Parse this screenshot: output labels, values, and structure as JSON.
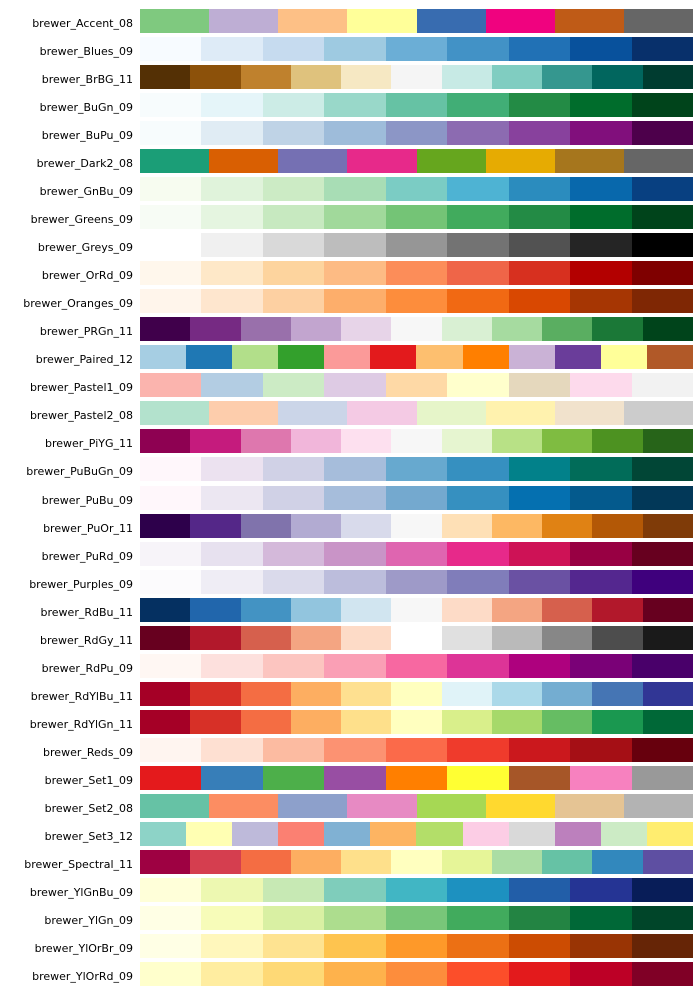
{
  "chart_data": {
    "type": "heatmap",
    "palettes": [
      {
        "name": "brewer_Accent_08",
        "colors": [
          "#7fc97f",
          "#beaed4",
          "#fdc086",
          "#ffff99",
          "#386cb0",
          "#f0027f",
          "#bf5b17",
          "#666666"
        ]
      },
      {
        "name": "brewer_Blues_09",
        "colors": [
          "#f7fbff",
          "#deebf7",
          "#c6dbef",
          "#9ecae1",
          "#6baed6",
          "#4292c6",
          "#2171b5",
          "#08519c",
          "#08306b"
        ]
      },
      {
        "name": "brewer_BrBG_11",
        "colors": [
          "#543005",
          "#8c510a",
          "#bf812d",
          "#dfc27d",
          "#f6e8c3",
          "#f5f5f5",
          "#c7eae5",
          "#80cdc1",
          "#35978f",
          "#01665e",
          "#003c30"
        ]
      },
      {
        "name": "brewer_BuGn_09",
        "colors": [
          "#f7fcfd",
          "#e5f5f9",
          "#ccece6",
          "#99d8c9",
          "#66c2a4",
          "#41ae76",
          "#238b45",
          "#006d2c",
          "#00441b"
        ]
      },
      {
        "name": "brewer_BuPu_09",
        "colors": [
          "#f7fcfd",
          "#e0ecf4",
          "#bfd3e6",
          "#9ebcda",
          "#8c96c6",
          "#8c6bb1",
          "#88419d",
          "#810f7c",
          "#4d004b"
        ]
      },
      {
        "name": "brewer_Dark2_08",
        "colors": [
          "#1b9e77",
          "#d95f02",
          "#7570b3",
          "#e7298a",
          "#66a61e",
          "#e6ab02",
          "#a6761d",
          "#666666"
        ]
      },
      {
        "name": "brewer_GnBu_09",
        "colors": [
          "#f7fcf0",
          "#e0f3db",
          "#ccebc5",
          "#a8ddb5",
          "#7bccc4",
          "#4eb3d3",
          "#2b8cbe",
          "#0868ac",
          "#084081"
        ]
      },
      {
        "name": "brewer_Greens_09",
        "colors": [
          "#f7fcf5",
          "#e5f5e0",
          "#c7e9c0",
          "#a1d99b",
          "#74c476",
          "#41ab5d",
          "#238b45",
          "#006d2c",
          "#00441b"
        ]
      },
      {
        "name": "brewer_Greys_09",
        "colors": [
          "#ffffff",
          "#f0f0f0",
          "#d9d9d9",
          "#bdbdbd",
          "#969696",
          "#737373",
          "#525252",
          "#252525",
          "#000000"
        ]
      },
      {
        "name": "brewer_OrRd_09",
        "colors": [
          "#fff7ec",
          "#fee8c8",
          "#fdd49e",
          "#fdbb84",
          "#fc8d59",
          "#ef6548",
          "#d7301f",
          "#b30000",
          "#7f0000"
        ]
      },
      {
        "name": "brewer_Oranges_09",
        "colors": [
          "#fff5eb",
          "#fee6ce",
          "#fdd0a2",
          "#fdae6b",
          "#fd8d3c",
          "#f16913",
          "#d94801",
          "#a63603",
          "#7f2704"
        ]
      },
      {
        "name": "brewer_PRGn_11",
        "colors": [
          "#40004b",
          "#762a83",
          "#9970ab",
          "#c2a5cf",
          "#e7d4e8",
          "#f7f7f7",
          "#d9f0d3",
          "#a6dba0",
          "#5aae61",
          "#1b7837",
          "#00441b"
        ]
      },
      {
        "name": "brewer_Paired_12",
        "colors": [
          "#a6cee3",
          "#1f78b4",
          "#b2df8a",
          "#33a02c",
          "#fb9a99",
          "#e31a1c",
          "#fdbf6f",
          "#ff7f00",
          "#cab2d6",
          "#6a3d9a",
          "#ffff99",
          "#b15928"
        ]
      },
      {
        "name": "brewer_Pastel1_09",
        "colors": [
          "#fbb4ae",
          "#b3cde3",
          "#ccebc5",
          "#decbe4",
          "#fed9a6",
          "#ffffcc",
          "#e5d8bd",
          "#fddaec",
          "#f2f2f2"
        ]
      },
      {
        "name": "brewer_Pastel2_08",
        "colors": [
          "#b3e2cd",
          "#fdcdac",
          "#cbd5e8",
          "#f4cae4",
          "#e6f5c9",
          "#fff2ae",
          "#f1e2cc",
          "#cccccc"
        ]
      },
      {
        "name": "brewer_PiYG_11",
        "colors": [
          "#8e0152",
          "#c51b7d",
          "#de77ae",
          "#f1b6da",
          "#fde0ef",
          "#f7f7f7",
          "#e6f5d0",
          "#b8e186",
          "#7fbc41",
          "#4d9221",
          "#276419"
        ]
      },
      {
        "name": "brewer_PuBuGn_09",
        "colors": [
          "#fff7fb",
          "#ece2f0",
          "#d0d1e6",
          "#a6bddb",
          "#67a9cf",
          "#3690c0",
          "#02818a",
          "#016c59",
          "#014636"
        ]
      },
      {
        "name": "brewer_PuBu_09",
        "colors": [
          "#fff7fb",
          "#ece7f2",
          "#d0d1e6",
          "#a6bddb",
          "#74a9cf",
          "#3690c0",
          "#0570b0",
          "#045a8d",
          "#023858"
        ]
      },
      {
        "name": "brewer_PuOr_11",
        "colors": [
          "#2d004b",
          "#542788",
          "#8073ac",
          "#b2abd2",
          "#d8daeb",
          "#f7f7f7",
          "#fee0b6",
          "#fdb863",
          "#e08214",
          "#b35806",
          "#7f3b08"
        ]
      },
      {
        "name": "brewer_PuRd_09",
        "colors": [
          "#f7f4f9",
          "#e7e1ef",
          "#d4b9da",
          "#c994c7",
          "#df65b0",
          "#e7298a",
          "#ce1256",
          "#980043",
          "#67001f"
        ]
      },
      {
        "name": "brewer_Purples_09",
        "colors": [
          "#fcfbfd",
          "#efedf5",
          "#dadaeb",
          "#bcbddc",
          "#9e9ac8",
          "#807dba",
          "#6a51a3",
          "#54278f",
          "#3f007d"
        ]
      },
      {
        "name": "brewer_RdBu_11",
        "colors": [
          "#053061",
          "#2166ac",
          "#4393c3",
          "#92c5de",
          "#d1e5f0",
          "#f7f7f7",
          "#fddbc7",
          "#f4a582",
          "#d6604d",
          "#b2182b",
          "#67001f"
        ]
      },
      {
        "name": "brewer_RdGy_11",
        "colors": [
          "#67001f",
          "#b2182b",
          "#d6604d",
          "#f4a582",
          "#fddbc7",
          "#ffffff",
          "#e0e0e0",
          "#bababa",
          "#878787",
          "#4d4d4d",
          "#1a1a1a"
        ]
      },
      {
        "name": "brewer_RdPu_09",
        "colors": [
          "#fff7f3",
          "#fde0dd",
          "#fcc5c0",
          "#fa9fb5",
          "#f768a1",
          "#dd3497",
          "#ae017e",
          "#7a0177",
          "#49006a"
        ]
      },
      {
        "name": "brewer_RdYlBu_11",
        "colors": [
          "#a50026",
          "#d73027",
          "#f46d43",
          "#fdae61",
          "#fee090",
          "#ffffbf",
          "#e0f3f8",
          "#abd9e9",
          "#74add1",
          "#4575b4",
          "#313695"
        ]
      },
      {
        "name": "brewer_RdYlGn_11",
        "colors": [
          "#a50026",
          "#d73027",
          "#f46d43",
          "#fdae61",
          "#fee08b",
          "#ffffbf",
          "#d9ef8b",
          "#a6d96a",
          "#66bd63",
          "#1a9850",
          "#006837"
        ]
      },
      {
        "name": "brewer_Reds_09",
        "colors": [
          "#fff5f0",
          "#fee0d2",
          "#fcbba1",
          "#fc9272",
          "#fb6a4a",
          "#ef3b2c",
          "#cb181d",
          "#a50f15",
          "#67000d"
        ]
      },
      {
        "name": "brewer_Set1_09",
        "colors": [
          "#e41a1c",
          "#377eb8",
          "#4daf4a",
          "#984ea3",
          "#ff7f00",
          "#ffff33",
          "#a65628",
          "#f781bf",
          "#999999"
        ]
      },
      {
        "name": "brewer_Set2_08",
        "colors": [
          "#66c2a5",
          "#fc8d62",
          "#8da0cb",
          "#e78ac3",
          "#a6d854",
          "#ffd92f",
          "#e5c494",
          "#b3b3b3"
        ]
      },
      {
        "name": "brewer_Set3_12",
        "colors": [
          "#8dd3c7",
          "#ffffb3",
          "#bebada",
          "#fb8072",
          "#80b1d3",
          "#fdb462",
          "#b3de69",
          "#fccde5",
          "#d9d9d9",
          "#bc80bd",
          "#ccebc5",
          "#ffed6f"
        ]
      },
      {
        "name": "brewer_Spectral_11",
        "colors": [
          "#9e0142",
          "#d53e4f",
          "#f46d43",
          "#fdae61",
          "#fee08b",
          "#ffffbf",
          "#e6f598",
          "#abdda4",
          "#66c2a5",
          "#3288bd",
          "#5e4fa2"
        ]
      },
      {
        "name": "brewer_YlGnBu_09",
        "colors": [
          "#ffffd9",
          "#edf8b1",
          "#c7e9b4",
          "#7fcdbb",
          "#41b6c4",
          "#1d91c0",
          "#225ea8",
          "#253494",
          "#081d58"
        ]
      },
      {
        "name": "brewer_YlGn_09",
        "colors": [
          "#ffffe5",
          "#f7fcb9",
          "#d9f0a3",
          "#addd8e",
          "#78c679",
          "#41ab5d",
          "#238443",
          "#006837",
          "#004529"
        ]
      },
      {
        "name": "brewer_YlOrBr_09",
        "colors": [
          "#ffffe5",
          "#fff7bc",
          "#fee391",
          "#fec44f",
          "#fe9929",
          "#ec7014",
          "#cc4c02",
          "#993404",
          "#662506"
        ]
      },
      {
        "name": "brewer_YlOrRd_09",
        "colors": [
          "#ffffcc",
          "#ffeda0",
          "#fed976",
          "#feb24c",
          "#fd8d3c",
          "#fc4e2a",
          "#e31a1c",
          "#bd0026",
          "#800026"
        ]
      }
    ]
  }
}
